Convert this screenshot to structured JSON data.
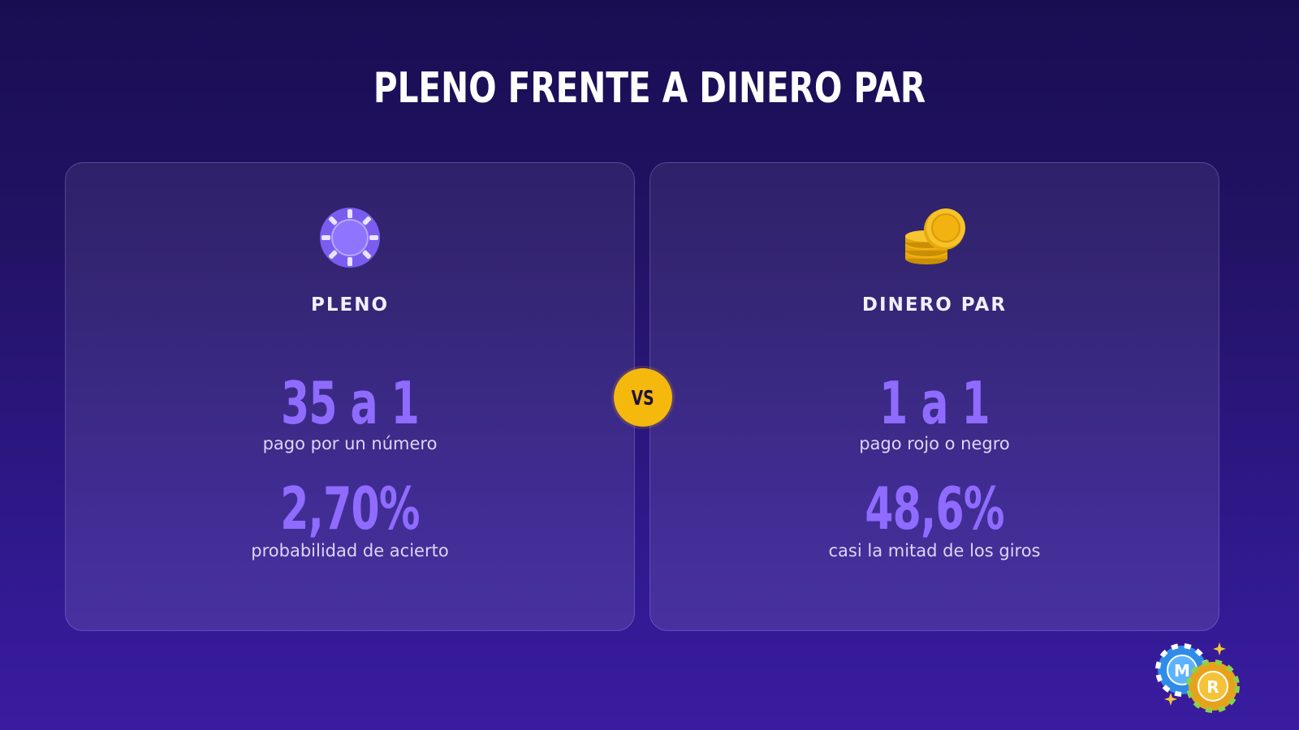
{
  "title": "PLENO FRENTE A DINERO PAR",
  "vs_label": "VS",
  "cards": [
    {
      "name": "PLENO",
      "icon": "roulette-chip-icon",
      "stats": [
        {
          "value": "35 a 1",
          "label": "pago por un número"
        },
        {
          "value": "2,70%",
          "label": "probabilidad de acierto"
        }
      ]
    },
    {
      "name": "DINERO PAR",
      "icon": "coin-stack-icon",
      "stats": [
        {
          "value": "1 a 1",
          "label": "pago rojo o negro"
        },
        {
          "value": "48,6%",
          "label": "casi la mitad de los giros"
        }
      ]
    }
  ],
  "logo": {
    "icon": "casino-chips-logo",
    "letters": [
      "M",
      "R"
    ]
  },
  "colors": {
    "background_top": "#190d52",
    "background_bottom": "#3a1ca0",
    "accent_purple": "#8f6bff",
    "vs_yellow": "#f5b80d",
    "coin_gold": "#f2b20f"
  }
}
